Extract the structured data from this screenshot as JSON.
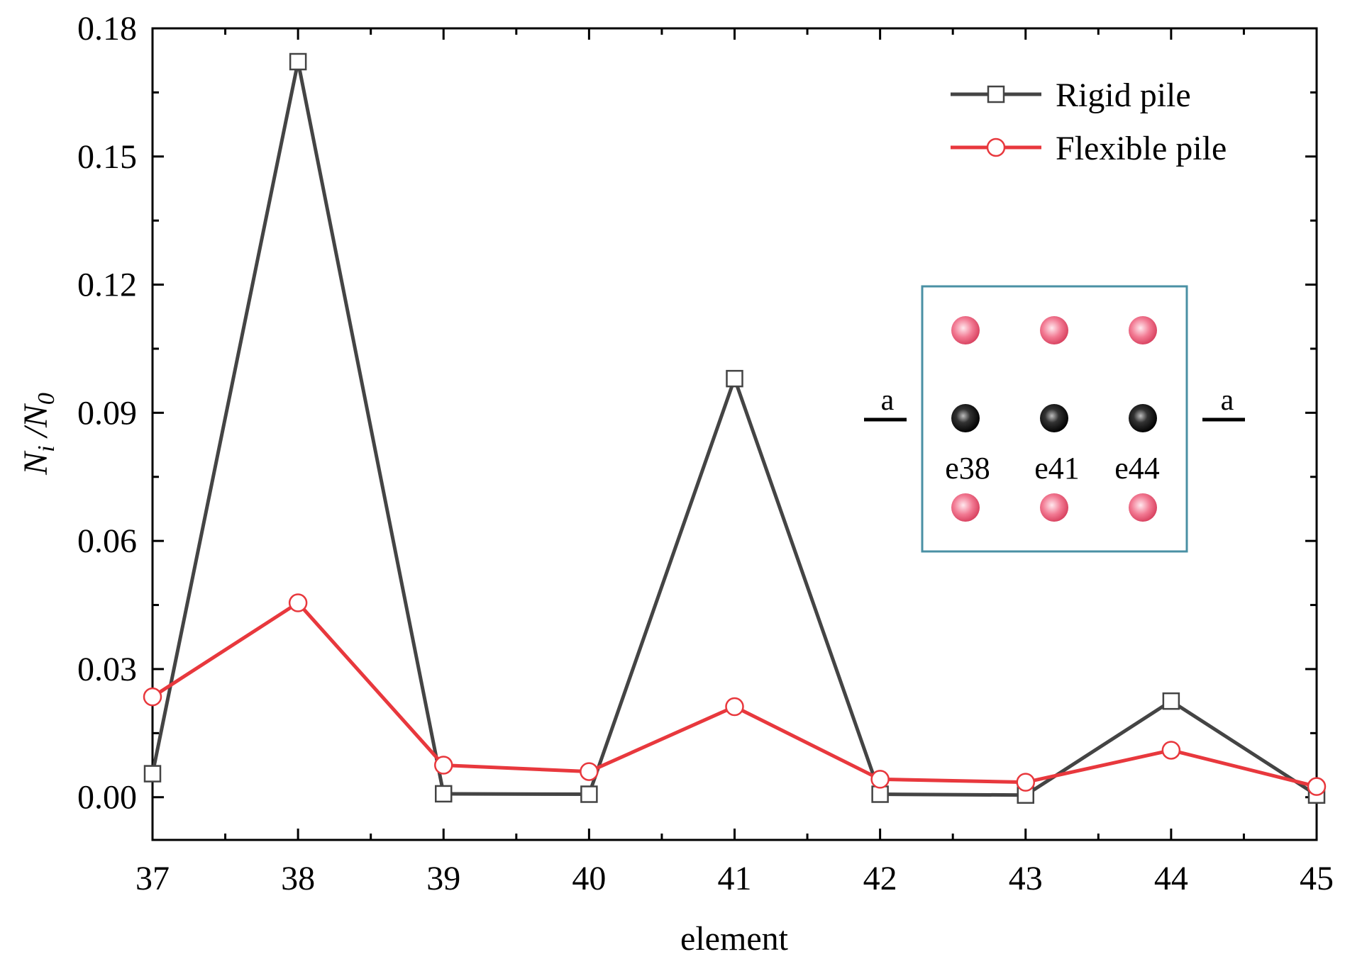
{
  "chart_data": {
    "type": "line",
    "xlabel": "element",
    "ylabel": "N",
    "ylabel_sub1": "i",
    "ylabel_sep": " /",
    "ylabel_base2": "N",
    "ylabel_sub2": "0",
    "xlim": [
      37,
      45
    ],
    "ylim": [
      -0.01,
      0.18
    ],
    "xticks": [
      37,
      38,
      39,
      40,
      41,
      42,
      43,
      44,
      45
    ],
    "yticks": [
      0.0,
      0.03,
      0.06,
      0.09,
      0.12,
      0.15,
      0.18
    ],
    "ytick_labels": [
      "0.00",
      "0.03",
      "0.06",
      "0.09",
      "0.12",
      "0.15",
      "0.18"
    ],
    "x": [
      37,
      38,
      39,
      40,
      41,
      42,
      43,
      44,
      45
    ],
    "grid": false,
    "legend_position": "top-right",
    "series": [
      {
        "name": "Rigid pile",
        "color": "#444444",
        "marker": "square-open",
        "values": [
          0.0055,
          0.1722,
          0.0008,
          0.0007,
          0.098,
          0.0007,
          0.0005,
          0.0225,
          0.0005
        ]
      },
      {
        "name": "Flexible pile",
        "color": "#e8383d",
        "marker": "circle-open",
        "values": [
          0.0235,
          0.0455,
          0.0075,
          0.006,
          0.0212,
          0.0042,
          0.0035,
          0.011,
          0.0025
        ]
      }
    ]
  },
  "inset": {
    "section_label_left": "a",
    "section_label_right": "a",
    "element_labels": [
      "e38",
      "e41",
      "e44"
    ],
    "border_color": "#4a90a4",
    "top_pile_color": "#e8607a",
    "middle_pile_color": "#111111"
  }
}
